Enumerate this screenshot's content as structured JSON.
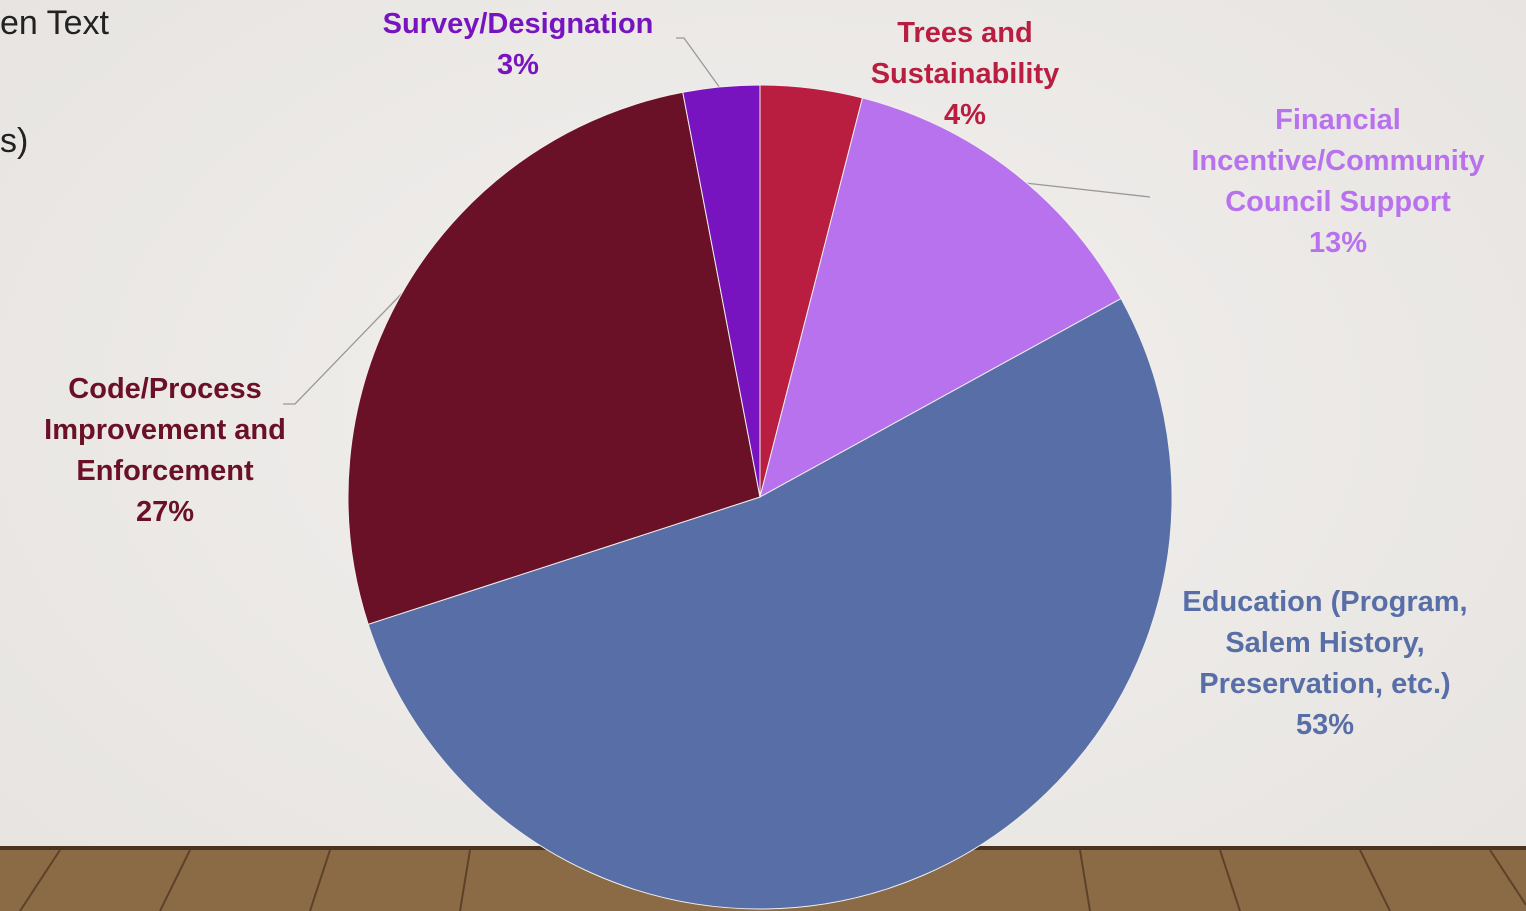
{
  "slide_text": [
    "en Text",
    "s)"
  ],
  "chart_data": {
    "type": "pie",
    "categories": [
      "Trees and Sustainability",
      "Financial Incentive/Community Council Support",
      "Education (Program, Salem History, Preservation, etc.)",
      "Code/Process Improvement and Enforcement",
      "Survey/Designation"
    ],
    "values": [
      4,
      13,
      53,
      27,
      3
    ],
    "value_labels": [
      "4%",
      "13%",
      "53%",
      "27%",
      "3%"
    ],
    "colors": [
      "#b91d40",
      "#b972ee",
      "#586ea7",
      "#6b1127",
      "#7714c0"
    ]
  }
}
